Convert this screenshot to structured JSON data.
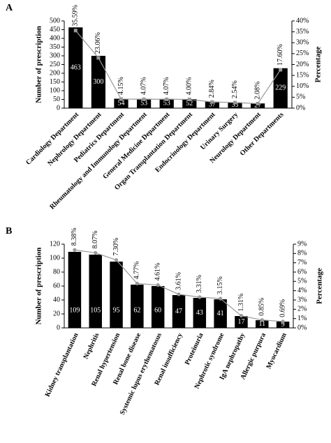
{
  "chart_data": [
    {
      "type": "bar",
      "label": "A",
      "y_label": "Number of prescription",
      "y2_label": "Percentage",
      "categories": [
        "Cardiology Department",
        "Nephrology Department",
        "Pediatrics Department",
        "Rheumatology and Immunology Department",
        "General Medicine Department",
        "Organ Transplantation Department",
        "Endocrinology Department",
        "Urinary Surgery",
        "Neurology Department",
        "Other Departments"
      ],
      "series": [
        {
          "type": "bar",
          "color": "#000000",
          "values": [
            463,
            300,
            54,
            53,
            53,
            52,
            37,
            33,
            27,
            229
          ]
        },
        {
          "type": "line",
          "axis": "y2",
          "color": "#999999",
          "marker": "square",
          "values": [
            35.59,
            23.06,
            4.15,
            4.07,
            4.07,
            4.0,
            2.84,
            2.54,
            2.08,
            17.6
          ],
          "value_labels": [
            "35.59%",
            "23.06%",
            "4.15%",
            "4.07%",
            "4.07%",
            "4.00%",
            "2.84%",
            "2.54%",
            "2.08%",
            "17.60%"
          ]
        }
      ],
      "ylim": [
        0,
        500
      ],
      "yticks": [
        0,
        50,
        100,
        150,
        200,
        250,
        300,
        350,
        400,
        450,
        500
      ],
      "y2lim": [
        0,
        40
      ],
      "y2ticks": [
        {
          "value": 0,
          "label": "0%"
        },
        {
          "value": 5,
          "label": "5%"
        },
        {
          "value": 10,
          "label": "10%"
        },
        {
          "value": 15,
          "label": "15%"
        },
        {
          "value": 20,
          "label": "20%"
        },
        {
          "value": 25,
          "label": "25%"
        },
        {
          "value": 30,
          "label": "30%"
        },
        {
          "value": 35,
          "label": "35%"
        },
        {
          "value": 40,
          "label": "40%"
        }
      ]
    },
    {
      "type": "bar",
      "label": "B",
      "y_label": "Number of prescription",
      "y2_label": "Percentage",
      "categories": [
        "Kidney transplantation",
        "Nephritis",
        "Renal hypertension",
        "Renal bone disease",
        "Systemic lupus erythematosus",
        "Renal insufficiency",
        "Proteinuria",
        "Nephrotic syndrome",
        "IgA nephropathy",
        "Allergic purpura",
        "Myocardium"
      ],
      "series": [
        {
          "type": "bar",
          "color": "#000000",
          "values": [
            109,
            105,
            95,
            62,
            60,
            47,
            43,
            41,
            17,
            11,
            9
          ]
        },
        {
          "type": "line",
          "axis": "y2",
          "color": "#999999",
          "marker": "circle",
          "values": [
            8.38,
            8.07,
            7.3,
            4.77,
            4.61,
            3.61,
            3.31,
            3.15,
            1.31,
            0.85,
            0.69
          ],
          "value_labels": [
            "8.38%",
            "8.07%",
            "7.30%",
            "4.77%",
            "4.61%",
            "3.61%",
            "3.31%",
            "3.15%",
            "1.31%",
            "0.85%",
            "0.69%"
          ]
        }
      ],
      "ylim": [
        0,
        120
      ],
      "yticks": [
        0,
        20,
        40,
        60,
        80,
        100,
        120
      ],
      "y2lim": [
        0,
        9
      ],
      "y2ticks": [
        {
          "value": 0,
          "label": "0%"
        },
        {
          "value": 1,
          "label": "1%"
        },
        {
          "value": 2,
          "label": "2%"
        },
        {
          "value": 3,
          "label": "3%"
        },
        {
          "value": 4,
          "label": "4%"
        },
        {
          "value": 5,
          "label": "5%"
        },
        {
          "value": 6,
          "label": "6%"
        },
        {
          "value": 7,
          "label": "7%"
        },
        {
          "value": 8,
          "label": "8%"
        },
        {
          "value": 9,
          "label": "9%"
        }
      ]
    }
  ]
}
